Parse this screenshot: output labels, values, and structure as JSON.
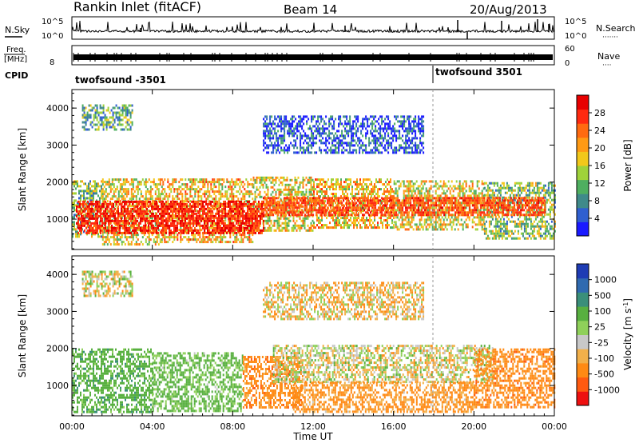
{
  "header": {
    "title": "Rankin Inlet (fitACF)",
    "beam": "Beam 14",
    "date": "20/Aug/2013"
  },
  "noise_panel": {
    "left_label": "N.Sky",
    "right_label": "N.Search",
    "right_dots": "·······",
    "left_ticks": [
      "10^5",
      "10^0"
    ],
    "right_ticks": [
      "10^5",
      "10^0"
    ]
  },
  "freq_panel": {
    "left_label_line1": "Freq.",
    "left_label_line2": "[MHz]",
    "right_label": "Nave",
    "right_dots": "····",
    "left_ticks": [
      "8"
    ],
    "right_ticks": [
      "60",
      "0"
    ]
  },
  "cpid_panel": {
    "label": "CPID",
    "segments": [
      {
        "name": "twofsound -3501",
        "start": "00:00"
      },
      {
        "name": "twofsound 3501",
        "start": "18:00"
      }
    ]
  },
  "power_colorbar": {
    "label": "Power [dB]",
    "ticks": [
      "4",
      "8",
      "12",
      "16",
      "20",
      "24",
      "28"
    ],
    "colors": [
      "#1a1aff",
      "#2f5fd0",
      "#3f8a8a",
      "#4faf60",
      "#9fd23a",
      "#f2c81a",
      "#ff9a14",
      "#ff6a10",
      "#ff2a10",
      "#e80000"
    ]
  },
  "velocity_colorbar": {
    "label": "Velocity [m s^-1]",
    "ticks": [
      "1000",
      "500",
      "100",
      "25",
      "-25",
      "-100",
      "-500",
      "-1000"
    ],
    "colors": [
      "#1e3cb4",
      "#2f6ab0",
      "#3a8f7a",
      "#58b040",
      "#8fd05a",
      "#c8c8c8",
      "#f2b04a",
      "#ff8a14",
      "#ff5a10",
      "#ee1010"
    ]
  },
  "chart_data": {
    "type": "heatmap",
    "x_label": "Time UT",
    "x_ticks": [
      "00:00",
      "04:00",
      "08:00",
      "12:00",
      "16:00",
      "20:00",
      "00:00"
    ],
    "x_range_hours": [
      0,
      24
    ],
    "y_label": "Slant Range [km]",
    "y_ticks": [
      1000,
      2000,
      3000,
      4000
    ],
    "y_range_km": [
      180,
      4500
    ],
    "panels": [
      {
        "quantity": "Power [dB]",
        "scatter_bands": [
          {
            "t0": 0.0,
            "t1": 1.5,
            "r0": 500,
            "r1": 2050,
            "value": 14
          },
          {
            "t0": 1.5,
            "t1": 4.5,
            "r0": 350,
            "r1": 2100,
            "value": 18
          },
          {
            "t0": 4.5,
            "t1": 9.0,
            "r0": 400,
            "r1": 2100,
            "value": 20
          },
          {
            "t0": 9.0,
            "t1": 12.0,
            "r0": 700,
            "r1": 2150,
            "value": 18
          },
          {
            "t0": 12.0,
            "t1": 16.0,
            "r0": 800,
            "r1": 2100,
            "value": 20
          },
          {
            "t0": 16.0,
            "t1": 20.5,
            "r0": 700,
            "r1": 2050,
            "value": 18
          },
          {
            "t0": 20.5,
            "t1": 24.0,
            "r0": 500,
            "r1": 2000,
            "value": 14
          },
          {
            "t0": 0.5,
            "t1": 3.0,
            "r0": 3400,
            "r1": 4100,
            "value": 12
          },
          {
            "t0": 9.5,
            "t1": 17.5,
            "r0": 2800,
            "r1": 3800,
            "value": 6
          }
        ],
        "strong_bands": [
          {
            "t0": 0.2,
            "t1": 9.5,
            "r0": 600,
            "r1": 1500,
            "value": 28
          },
          {
            "t0": 9.5,
            "t1": 23.5,
            "r0": 1100,
            "r1": 1600,
            "value": 26
          }
        ]
      },
      {
        "quantity": "Velocity [m s^-1]",
        "scatter_bands": [
          {
            "t0": 0.0,
            "t1": 4.0,
            "r0": 300,
            "r1": 2000,
            "value": 200
          },
          {
            "t0": 4.0,
            "t1": 8.5,
            "r0": 300,
            "r1": 1900,
            "value": 150
          },
          {
            "t0": 8.5,
            "t1": 11.5,
            "r0": 400,
            "r1": 1800,
            "value": -200
          },
          {
            "t0": 10.0,
            "t1": 21.0,
            "r0": 1100,
            "r1": 2100,
            "value": 0
          },
          {
            "t0": 11.0,
            "t1": 20.0,
            "r0": 300,
            "r1": 1100,
            "value": -150
          },
          {
            "t0": 20.0,
            "t1": 24.0,
            "r0": 400,
            "r1": 2000,
            "value": -200
          },
          {
            "t0": 0.5,
            "t1": 3.0,
            "r0": 3400,
            "r1": 4100,
            "value": 0
          },
          {
            "t0": 9.5,
            "t1": 17.5,
            "r0": 2800,
            "r1": 3800,
            "value": -50
          }
        ]
      }
    ]
  }
}
